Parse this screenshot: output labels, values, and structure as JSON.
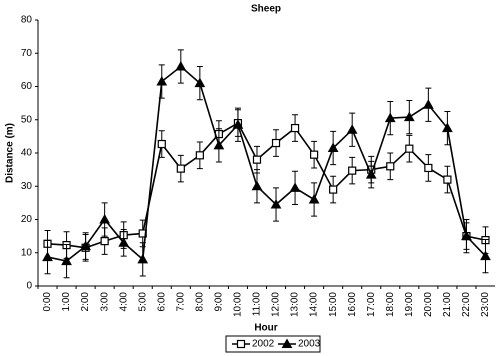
{
  "chart_data": {
    "type": "line",
    "title": "Sheep",
    "x_label": "Hour",
    "y_label": "Distance (m)",
    "categories": [
      "0:00",
      "1:00",
      "2:00",
      "3:00",
      "4:00",
      "5:00",
      "6:00",
      "7:00",
      "8:00",
      "9:00",
      "10:00",
      "11:00",
      "12:00",
      "13:00",
      "14:00",
      "15:00",
      "16:00",
      "17:00",
      "18:00",
      "19:00",
      "20:00",
      "21:00",
      "22:00",
      "23:00"
    ],
    "ylim": [
      0,
      80
    ],
    "yticks": [
      0,
      10,
      20,
      30,
      40,
      50,
      60,
      70,
      80
    ],
    "grid": false,
    "legend": "bottom",
    "series": [
      {
        "name": "2002",
        "color": "#000000",
        "marker": "square",
        "values": [
          12.7,
          12.3,
          11.5,
          13.5,
          15.3,
          15.8,
          42.7,
          35.3,
          39.3,
          45.7,
          49.0,
          38.0,
          43.0,
          47.5,
          39.5,
          29.0,
          34.7,
          35.0,
          36.0,
          41.3,
          35.5,
          32.0,
          15.0,
          13.8
        ],
        "errors": [
          4,
          4,
          4,
          4,
          4,
          4,
          4,
          4,
          4,
          4,
          4,
          4,
          4,
          4,
          4,
          4,
          4,
          4,
          4,
          4,
          4,
          4,
          4,
          4
        ]
      },
      {
        "name": "2003",
        "color": "#000000",
        "marker": "triangle",
        "values": [
          8.7,
          7.5,
          12.0,
          20.0,
          13.0,
          8.0,
          61.5,
          66.0,
          61.0,
          42.3,
          48.5,
          30.0,
          24.5,
          29.5,
          26.0,
          41.5,
          47.0,
          33.5,
          50.5,
          50.8,
          54.5,
          47.5,
          15.0,
          9.0
        ],
        "errors": [
          5,
          5,
          4,
          5,
          4,
          5,
          5,
          5,
          5,
          5,
          5,
          5,
          5,
          5,
          5,
          5,
          5,
          4,
          5,
          5,
          5,
          5,
          5,
          5
        ]
      }
    ]
  }
}
